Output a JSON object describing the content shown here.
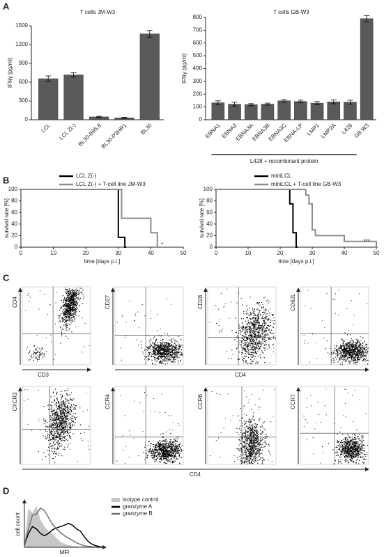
{
  "panel_labels": [
    "A",
    "B",
    "C",
    "D"
  ],
  "chart_data": [
    {
      "type": "bar",
      "title": "T cells JM-W3",
      "y_label": "IFNγ [pg/ml]",
      "color": "#5a5a5a",
      "categories": [
        "LCL",
        "LCL Z(-)",
        "BL30-B95.8",
        "BL30-P3HR1",
        "BL30"
      ],
      "values": [
        655,
        715,
        45,
        30,
        1370
      ],
      "errors": [
        45,
        35,
        10,
        8,
        55
      ],
      "ylim": [
        0,
        1500
      ],
      "yticks": [
        0,
        300,
        600,
        900,
        1200,
        1500
      ]
    },
    {
      "type": "bar",
      "title": "T cells GB-W3",
      "y_label": "IFNγ [pg/ml]",
      "color": "#5a5a5a",
      "categories": [
        "EBNA1",
        "EBNA2",
        "EBNA3A",
        "EBNA3B",
        "EBNA3C",
        "EBNA-LP",
        "LMP1",
        "LMP2A",
        "L428",
        "GB W3"
      ],
      "values": [
        133,
        122,
        118,
        122,
        148,
        143,
        130,
        140,
        138,
        790
      ],
      "errors": [
        15,
        15,
        8,
        8,
        10,
        10,
        12,
        15,
        15,
        25
      ],
      "annotation": "L428 + recombinant protein",
      "ylim": [
        0,
        800
      ],
      "yticks": [
        0,
        100,
        200,
        300,
        400,
        500,
        600,
        700,
        800
      ]
    },
    {
      "type": "step",
      "x_label": "time [days p.i.]",
      "y_label": "survival rate [%]",
      "annotation": "*",
      "series": [
        {
          "name": "LCL Z(-)",
          "color": "#000000",
          "x": [
            0,
            30,
            32
          ],
          "values": [
            100,
            17,
            0
          ]
        },
        {
          "name": "LCL Z(-) + T-cell line JM-W3",
          "color": "#8c8c8c",
          "x": [
            0,
            31,
            40,
            42
          ],
          "values": [
            100,
            50,
            25,
            0
          ]
        }
      ],
      "xlim": [
        0,
        50
      ],
      "xticks": [
        0,
        10,
        20,
        30,
        40,
        50
      ],
      "ylim": [
        0,
        100
      ],
      "yticks": [
        0,
        20,
        40,
        60,
        80,
        100
      ]
    },
    {
      "type": "step",
      "x_label": "time [days p.i.]",
      "y_label": "survival rate [%]",
      "annotation": "***",
      "series": [
        {
          "name": "miniLCL",
          "color": "#000000",
          "x": [
            0,
            23,
            24,
            25
          ],
          "values": [
            100,
            75,
            25,
            0
          ]
        },
        {
          "name": "miniLCL + T-cell line GB-W3",
          "color": "#8c8c8c",
          "x": [
            0,
            28,
            29,
            30,
            31,
            40,
            50
          ],
          "values": [
            100,
            90,
            75,
            30,
            20,
            10,
            0
          ]
        }
      ],
      "xlim": [
        0,
        50
      ],
      "xticks": [
        0,
        10,
        20,
        30,
        40,
        50
      ],
      "ylim": [
        0,
        100
      ],
      "yticks": [
        0,
        20,
        40,
        60,
        80,
        100
      ]
    },
    {
      "type": "histogram-overlay",
      "x_label": "MFI",
      "y_label": "cell count",
      "x": [
        0,
        5,
        10,
        15,
        20,
        25,
        30,
        35,
        40,
        45,
        50,
        55,
        60,
        65,
        70,
        75,
        80,
        85,
        90,
        95,
        100
      ],
      "series": [
        {
          "name": "isotype control",
          "color": "#c8c8c8",
          "values": [
            10,
            85,
            75,
            90,
            60,
            45,
            35,
            30,
            20,
            12,
            8,
            5,
            3,
            2,
            1,
            1,
            0,
            0,
            0,
            0,
            0
          ]
        },
        {
          "name": "granzyme A",
          "color": "#000000",
          "values": [
            5,
            30,
            45,
            40,
            30,
            25,
            30,
            38,
            42,
            45,
            48,
            52,
            48,
            40,
            35,
            22,
            12,
            6,
            3,
            1,
            0
          ]
        },
        {
          "name": "granzyme B",
          "color": "#707070",
          "values": [
            5,
            40,
            70,
            72,
            85,
            80,
            65,
            50,
            40,
            32,
            25,
            20,
            15,
            10,
            6,
            3,
            2,
            1,
            0,
            0,
            0
          ]
        }
      ],
      "xlim": [
        0,
        100
      ],
      "ylim": [
        0,
        100
      ]
    }
  ],
  "panel_c": {
    "plots": [
      {
        "y_label": "CD4"
      },
      {
        "y_label": "CD27"
      },
      {
        "y_label": "CD28"
      },
      {
        "y_label": "CD62L"
      },
      {
        "y_label": "CXCR3"
      },
      {
        "y_label": "CCR4"
      },
      {
        "y_label": "CCR6"
      },
      {
        "y_label": "CCR7"
      }
    ],
    "x_labels": [
      "CD3",
      "CD4",
      "CD4"
    ]
  }
}
